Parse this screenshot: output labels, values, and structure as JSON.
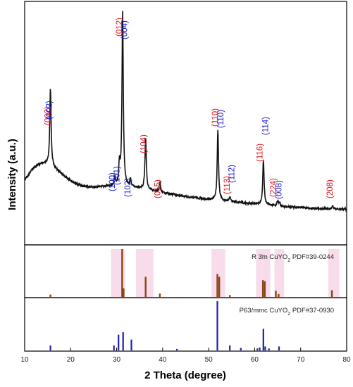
{
  "chart_data": {
    "type": "line",
    "xlabel": "2 Theta (degree)",
    "ylabel": "Intensity (a.u.)",
    "xlim": [
      10,
      80
    ],
    "x_ticks": [
      "10",
      "20",
      "30",
      "40",
      "50",
      "60",
      "70",
      "80"
    ],
    "grid": false,
    "colors": {
      "pattern": "#111111",
      "red_annotation": "#e8141c",
      "blue_annotation": "#1c1ccf",
      "ref1_bars": "#8b4513",
      "ref1_highlight": "#f7d6e8",
      "ref2_bars": "#1f1fb4"
    },
    "pattern_peaks": [
      {
        "x": 15.6,
        "y": 45
      },
      {
        "x": 29.6,
        "y": 5
      },
      {
        "x": 30.6,
        "y": 12
      },
      {
        "x": 31.3,
        "y": 100
      },
      {
        "x": 33.0,
        "y": 4
      },
      {
        "x": 36.3,
        "y": 30
      },
      {
        "x": 39.4,
        "y": 6
      },
      {
        "x": 52.0,
        "y": 41
      },
      {
        "x": 54.6,
        "y": 3
      },
      {
        "x": 61.9,
        "y": 26
      },
      {
        "x": 65.0,
        "y": 3
      },
      {
        "x": 65.4,
        "y": 2
      },
      {
        "x": 76.9,
        "y": 2
      }
    ],
    "annotations": [
      {
        "text": "(002)",
        "x": 15.6,
        "color": "red"
      },
      {
        "text": "(002)",
        "x": 15.9,
        "color": "blue"
      },
      {
        "text": "(100)",
        "x": 29.6,
        "color": "blue"
      },
      {
        "text": "(101)",
        "x": 30.6,
        "color": "blue"
      },
      {
        "text": "(012)",
        "x": 31.1,
        "color": "red"
      },
      {
        "text": "(004)",
        "x": 32.3,
        "color": "blue"
      },
      {
        "text": "(102)",
        "x": 33.0,
        "color": "blue"
      },
      {
        "text": "(104)",
        "x": 36.4,
        "color": "red"
      },
      {
        "text": "(015)",
        "x": 39.5,
        "color": "red"
      },
      {
        "text": "(110)",
        "x": 52.0,
        "color": "red"
      },
      {
        "text": "(110)",
        "x": 53.2,
        "color": "blue"
      },
      {
        "text": "(113)",
        "x": 54.6,
        "color": "red"
      },
      {
        "text": "(112)",
        "x": 55.6,
        "color": "blue"
      },
      {
        "text": "(116)",
        "x": 61.7,
        "color": "red"
      },
      {
        "text": "(114)",
        "x": 62.9,
        "color": "blue"
      },
      {
        "text": "(224)",
        "x": 64.6,
        "color": "red"
      },
      {
        "text": "(008)",
        "x": 65.8,
        "color": "blue"
      },
      {
        "text": "(208)",
        "x": 76.9,
        "color": "red"
      }
    ],
    "reference_1": {
      "label": "R 3̄m CuYO",
      "label_sub": "2",
      "label_tail": " PDF#39-0244",
      "bars": [
        {
          "x": 15.6,
          "h": 5
        },
        {
          "x": 31.2,
          "h": 100
        },
        {
          "x": 31.5,
          "h": 18
        },
        {
          "x": 36.3,
          "h": 42
        },
        {
          "x": 39.4,
          "h": 7
        },
        {
          "x": 51.9,
          "h": 48
        },
        {
          "x": 52.3,
          "h": 42
        },
        {
          "x": 54.6,
          "h": 4
        },
        {
          "x": 61.8,
          "h": 35
        },
        {
          "x": 62.2,
          "h": 33
        },
        {
          "x": 64.6,
          "h": 13
        },
        {
          "x": 65.2,
          "h": 6
        },
        {
          "x": 76.8,
          "h": 14
        }
      ],
      "highlights": [
        {
          "x0": 28.8,
          "x1": 31.8
        },
        {
          "x0": 34.2,
          "x1": 38.0
        },
        {
          "x0": 50.6,
          "x1": 53.6
        },
        {
          "x0": 60.3,
          "x1": 63.4
        },
        {
          "x0": 64.3,
          "x1": 66.4
        },
        {
          "x0": 76.0,
          "x1": 78.4
        }
      ]
    },
    "reference_2": {
      "label": "P63/mmc CuYO",
      "label_sub": "2",
      "label_tail": " PDF#37-0930",
      "bars": [
        {
          "x": 15.6,
          "h": 10
        },
        {
          "x": 29.4,
          "h": 10
        },
        {
          "x": 30.4,
          "h": 32
        },
        {
          "x": 31.4,
          "h": 37
        },
        {
          "x": 33.2,
          "h": 22
        },
        {
          "x": 43.1,
          "h": 3
        },
        {
          "x": 51.9,
          "h": 100
        },
        {
          "x": 54.6,
          "h": 10
        },
        {
          "x": 57.0,
          "h": 5
        },
        {
          "x": 60.6,
          "h": 4
        },
        {
          "x": 61.1,
          "h": 6
        },
        {
          "x": 61.9,
          "h": 44
        },
        {
          "x": 62.3,
          "h": 8
        },
        {
          "x": 63.1,
          "h": 4
        },
        {
          "x": 65.3,
          "h": 8
        }
      ]
    }
  }
}
